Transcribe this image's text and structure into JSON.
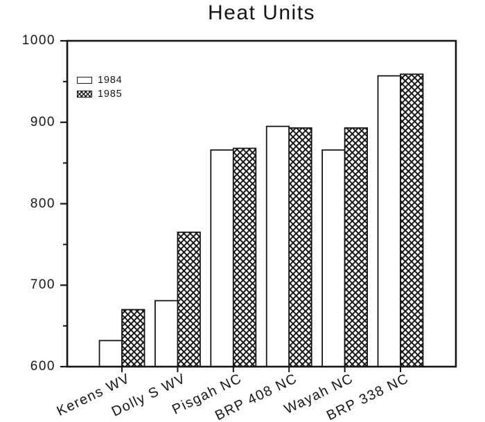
{
  "title": "Heat Units",
  "chart_data": {
    "type": "bar",
    "title": "Heat Units",
    "categories": [
      "Kerens WV",
      "Dolly S WV",
      "Pisgah NC",
      "BRP 408 NC",
      "Wayah NC",
      "BRP 338 NC"
    ],
    "series": [
      {
        "name": "1984",
        "pattern": "open-white",
        "values": [
          632,
          681,
          866,
          895,
          866,
          957
        ]
      },
      {
        "name": "1985",
        "pattern": "diagonal-crosshatch",
        "values": [
          670,
          765,
          868,
          893,
          893,
          959
        ]
      }
    ],
    "xlabel": "",
    "ylabel": "",
    "ylim": [
      600,
      1000
    ],
    "yticks": [
      600,
      700,
      800,
      900,
      1000
    ],
    "yticks_minor": [
      650,
      750,
      850,
      950
    ],
    "grid": false,
    "legend_position": "upper-left-inside"
  },
  "colors": {
    "ink": "#151515",
    "paper": "#ffffff"
  }
}
